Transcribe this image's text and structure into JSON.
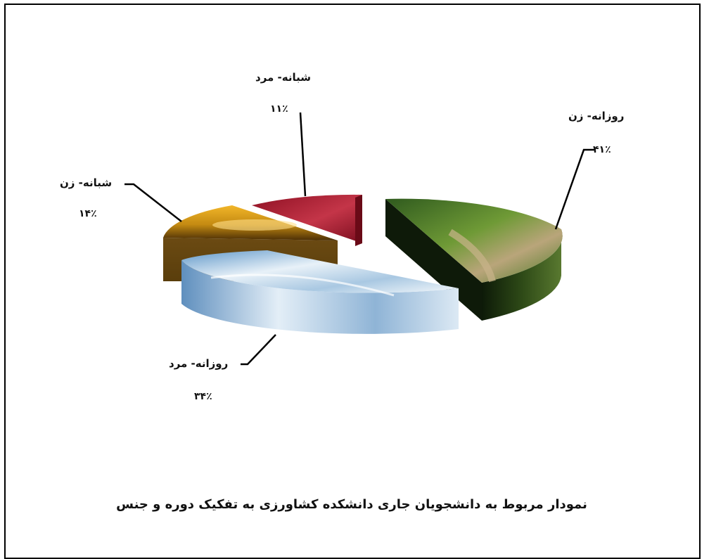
{
  "chart_data": {
    "type": "pie",
    "style": "3d-exploded",
    "title": "نمودار مربوط به دانشجویان جاری دانشکده کشاورزی به تفکیک دوره و جنس",
    "slices": [
      {
        "name": "روزانه- زن",
        "value": 41,
        "label": "۴۱٪",
        "color": "#4f7a2a"
      },
      {
        "name": "روزانه- مرد",
        "value": 34,
        "label": "۳۴٪",
        "color": "#9ec3e0"
      },
      {
        "name": "شبانه- زن",
        "value": 14,
        "label": "۱۴٪",
        "color": "#c79018"
      },
      {
        "name": "شبانه- مرد",
        "value": 11,
        "label": "۱۱٪",
        "color": "#a3182c"
      }
    ]
  }
}
